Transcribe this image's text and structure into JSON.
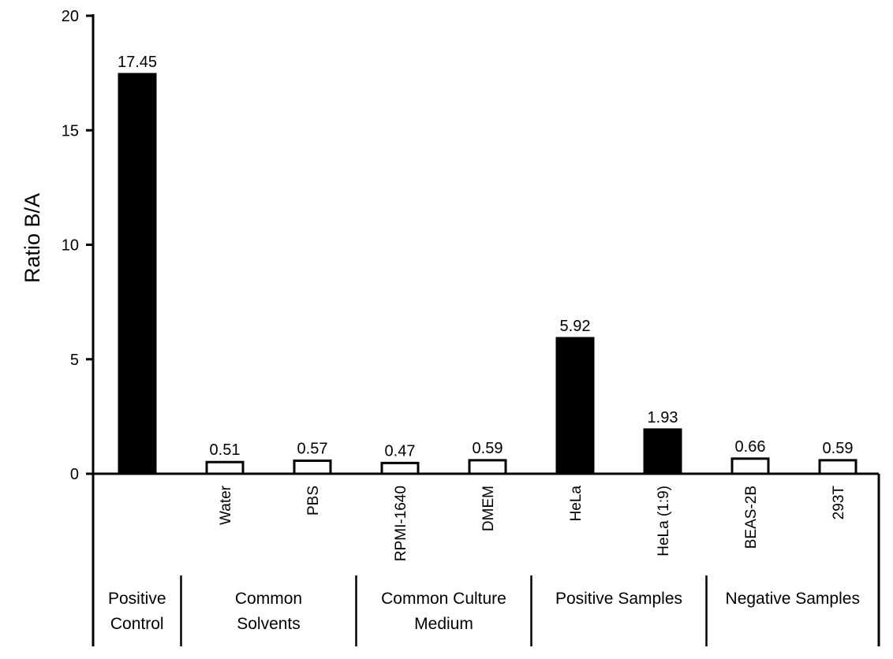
{
  "chart_data": {
    "type": "bar",
    "title": "",
    "xlabel": "",
    "ylabel": "Ratio B/A",
    "ylim": [
      0,
      20
    ],
    "yticks": [
      0,
      5,
      10,
      15,
      20
    ],
    "grid": false,
    "categories": [
      "",
      "Water",
      "PBS",
      "RPMI-1640",
      "DMEM",
      "HeLa",
      "HeLa (1:9)",
      "BEAS-2B",
      "293T"
    ],
    "values": [
      17.45,
      0.51,
      0.57,
      0.47,
      0.59,
      5.92,
      1.93,
      0.66,
      0.59
    ],
    "value_labels": [
      "17.45",
      "0.51",
      "0.57",
      "0.47",
      "0.59",
      "5.92",
      "1.93",
      "0.66",
      "0.59"
    ],
    "fills": [
      "#000000",
      "#ffffff",
      "#ffffff",
      "#ffffff",
      "#ffffff",
      "#000000",
      "#000000",
      "#ffffff",
      "#ffffff"
    ],
    "groups": [
      {
        "lines": [
          "Positive",
          "Control"
        ],
        "start": 0,
        "end": 0
      },
      {
        "lines": [
          "Common",
          "Solvents"
        ],
        "start": 1,
        "end": 2
      },
      {
        "lines": [
          "Common Culture",
          "Medium"
        ],
        "start": 3,
        "end": 4
      },
      {
        "lines": [
          "Positive Samples"
        ],
        "start": 5,
        "end": 6
      },
      {
        "lines": [
          "Negative Samples"
        ],
        "start": 7,
        "end": 8
      }
    ]
  }
}
